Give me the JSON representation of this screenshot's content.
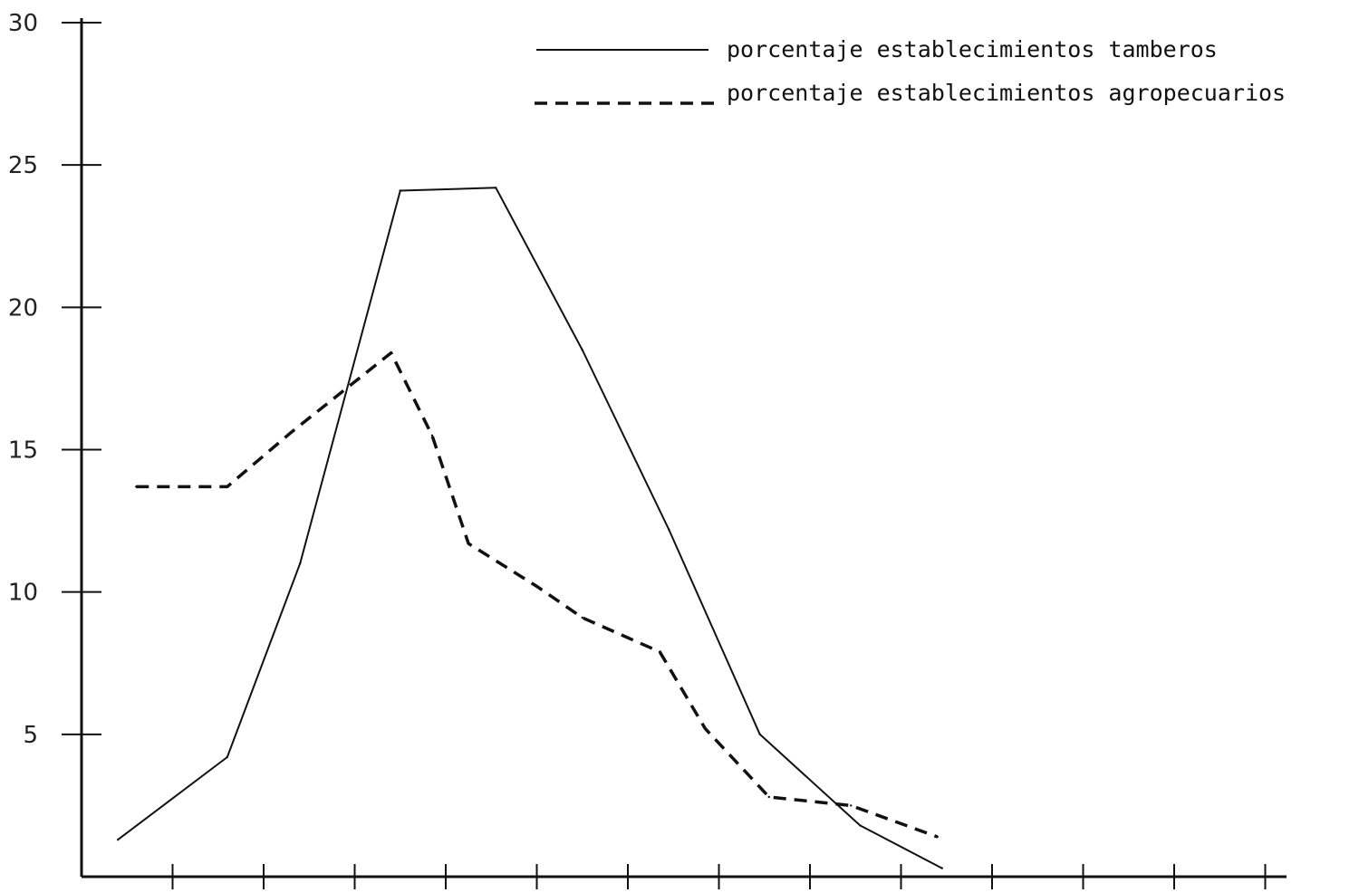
{
  "chart_data": {
    "type": "line",
    "title": "",
    "xlabel": "",
    "ylabel": "",
    "ylim": [
      0,
      30
    ],
    "y_ticks": [
      "5",
      "10",
      "15",
      "20",
      "25",
      "30"
    ],
    "x_tick_count": 13,
    "grid": false,
    "legend_position": "top-right",
    "series": [
      {
        "name": "porcentaje establecimientos tamberos",
        "line_style": "solid",
        "color": "#111111",
        "points": [
          {
            "x": 0.4,
            "y": 1.3
          },
          {
            "x": 1.6,
            "y": 4.2
          },
          {
            "x": 2.4,
            "y": 11.0
          },
          {
            "x": 3.5,
            "y": 24.1
          },
          {
            "x": 4.55,
            "y": 24.2
          },
          {
            "x": 5.5,
            "y": 18.5
          },
          {
            "x": 6.45,
            "y": 12.2
          },
          {
            "x": 7.45,
            "y": 5.0
          },
          {
            "x": 8.55,
            "y": 1.8
          },
          {
            "x": 9.45,
            "y": 0.3
          }
        ]
      },
      {
        "name": "porcentaje establecimientos agropecuarios",
        "line_style": "dashed",
        "color": "#111111",
        "points": [
          {
            "x": 0.6,
            "y": 13.7
          },
          {
            "x": 1.6,
            "y": 13.7
          },
          {
            "x": 2.3,
            "y": 15.6
          },
          {
            "x": 3.4,
            "y": 18.4
          },
          {
            "x": 3.85,
            "y": 15.5
          },
          {
            "x": 4.25,
            "y": 11.7
          },
          {
            "x": 5.0,
            "y": 10.2
          },
          {
            "x": 5.5,
            "y": 9.1
          },
          {
            "x": 6.35,
            "y": 7.9
          },
          {
            "x": 6.85,
            "y": 5.2
          },
          {
            "x": 7.55,
            "y": 2.8
          },
          {
            "x": 8.45,
            "y": 2.5
          },
          {
            "x": 9.4,
            "y": 1.4
          }
        ]
      }
    ]
  }
}
